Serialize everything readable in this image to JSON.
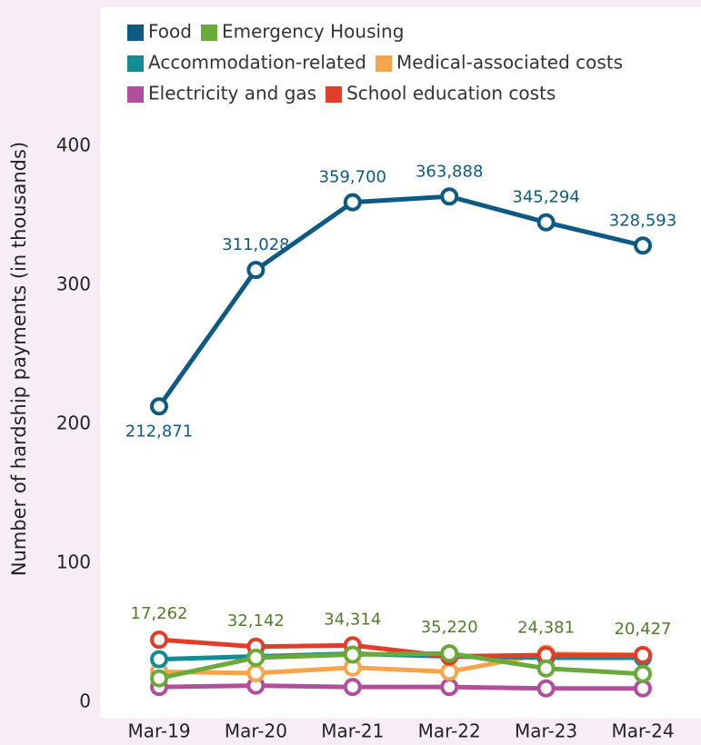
{
  "chart_data": {
    "type": "line",
    "y_label": "Number of hardship payments (in thousands)",
    "categories": [
      "Mar-19",
      "Mar-20",
      "Mar-21",
      "Mar-22",
      "Mar-23",
      "Mar-24"
    ],
    "series": [
      {
        "name": "Food",
        "color": "#0d5a82",
        "values": [
          212.871,
          311.028,
          359.7,
          363.888,
          345.294,
          328.593
        ],
        "value_labels": [
          "212,871",
          "311,028",
          "359,700",
          "363,888",
          "345,294",
          "328,593"
        ]
      },
      {
        "name": "Emergency Housing",
        "color": "#6aaa3a",
        "values": [
          17.262,
          32.142,
          34.314,
          35.22,
          24.381,
          20.427
        ],
        "value_labels": [
          "17,262",
          "32,142",
          "34,314",
          "35,220",
          "24,381",
          "20,427"
        ]
      },
      {
        "name": "Accommodation-related",
        "color": "#138c96",
        "values": [
          31,
          33,
          35,
          33,
          32,
          32
        ]
      },
      {
        "name": "Medical-associated costs",
        "color": "#f6a54a",
        "values": [
          22,
          21,
          25,
          22,
          35,
          34
        ]
      },
      {
        "name": "Electricity and gas",
        "color": "#b24f9c",
        "values": [
          11,
          12,
          11,
          11,
          10,
          10
        ]
      },
      {
        "name": "School education costs",
        "color": "#e03e2a",
        "values": [
          45,
          40,
          41,
          33,
          34,
          34
        ]
      }
    ],
    "ylim": [
      0,
      400
    ],
    "yticks": [
      0,
      100,
      200,
      300,
      400
    ],
    "legend": "top"
  }
}
